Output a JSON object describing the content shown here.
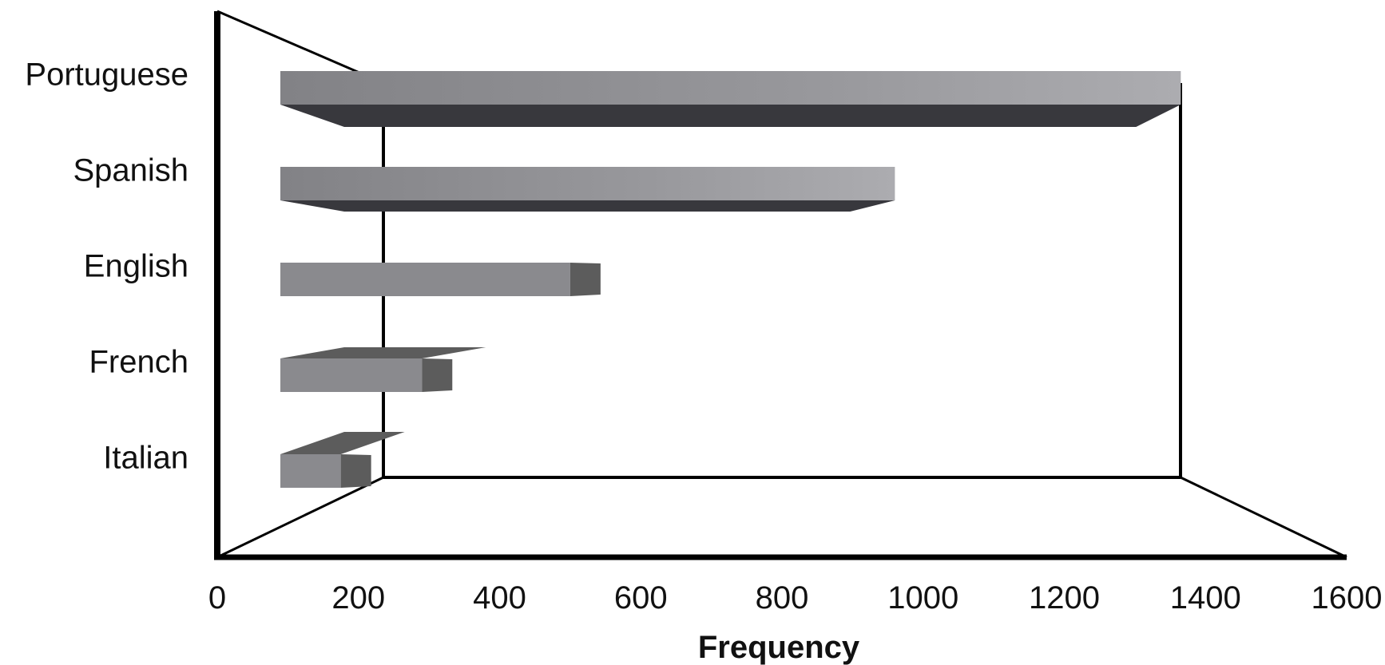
{
  "chart_data": {
    "type": "bar",
    "orientation": "horizontal",
    "style": "3d",
    "categories": [
      "Portuguese",
      "Spanish",
      "English",
      "French",
      "Italian"
    ],
    "series": [
      {
        "values": [
          1365,
          960,
          500,
          290,
          175
        ]
      }
    ],
    "xlabel": "Frequency",
    "ylabel": "",
    "title": "",
    "xlim": [
      0,
      1600
    ],
    "xticks": [
      "0",
      "200",
      "400",
      "600",
      "800",
      "1000",
      "1200",
      "1400",
      "1600"
    ],
    "grid": false,
    "legend": "none",
    "colors": {
      "bar_face": "#8a8a8e",
      "bar_face_light": "#a9a9ad",
      "bar_shadow": "#38383d",
      "bar_side": "#5c5c5c",
      "axis": "#000000"
    }
  }
}
